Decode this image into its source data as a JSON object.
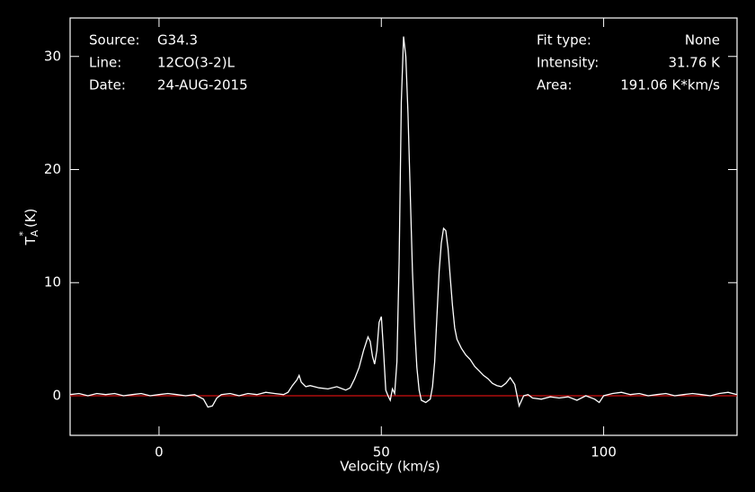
{
  "chart_data": {
    "type": "line",
    "info_left": [
      [
        "Source:",
        "G34.3"
      ],
      [
        "Line:",
        "12CO(3-2)L"
      ],
      [
        "Date:",
        "24-AUG-2015"
      ]
    ],
    "info_right": [
      [
        "Fit type:",
        "None"
      ],
      [
        "Intensity:",
        "31.76 K"
      ],
      [
        "Area:",
        "191.06 K*km/s"
      ]
    ],
    "xlabel": "Velocity (km/s)",
    "ylabel": {
      "main": "T",
      "sub": "A",
      "sup": "*",
      "unit": "(K)"
    },
    "xlim": [
      -20,
      130
    ],
    "ylim": [
      -3.5,
      33.4
    ],
    "xticks": [
      0,
      50,
      100
    ],
    "yticks": [
      0,
      10,
      20,
      30
    ],
    "baseline": {
      "value": 0,
      "color": "#d01010"
    },
    "x": [
      -20,
      -18,
      -16,
      -14,
      -12,
      -10,
      -8,
      -6,
      -4,
      -2,
      0,
      2,
      4,
      6,
      8,
      10,
      11,
      12,
      13,
      14,
      16,
      18,
      20,
      22,
      24,
      26,
      28,
      29,
      30,
      31,
      31.5,
      32,
      33,
      34,
      36,
      38,
      40,
      42,
      43,
      44,
      45,
      46,
      47,
      47.5,
      48,
      48.5,
      49,
      49.5,
      50,
      50.5,
      51,
      51.5,
      52,
      52.5,
      53,
      53.5,
      54,
      54.5,
      55,
      55.5,
      56,
      56.5,
      57,
      57.5,
      58,
      58.5,
      59,
      60,
      61,
      61.5,
      62,
      62.5,
      63,
      63.5,
      64,
      64.5,
      65,
      65.5,
      66,
      66.5,
      67,
      68,
      69,
      70,
      71,
      72,
      73,
      74,
      75,
      76,
      77,
      78,
      79,
      80,
      81,
      82,
      83,
      84,
      86,
      88,
      90,
      92,
      94,
      96,
      98,
      99,
      100,
      102,
      104,
      106,
      108,
      110,
      112,
      114,
      116,
      118,
      120,
      122,
      124,
      126,
      128,
      130
    ],
    "series": [
      {
        "color": "#ffffff",
        "values": [
          0.1,
          0.2,
          0,
          0.2,
          0.1,
          0.2,
          0,
          0.1,
          0.2,
          0,
          0.1,
          0.2,
          0.1,
          0,
          0.1,
          -0.3,
          -1,
          -0.9,
          -0.2,
          0.1,
          0.2,
          0,
          0.2,
          0.1,
          0.3,
          0.2,
          0.1,
          0.3,
          0.9,
          1.4,
          1.8,
          1.2,
          0.8,
          0.9,
          0.7,
          0.6,
          0.8,
          0.5,
          0.7,
          1.5,
          2.5,
          4,
          5.2,
          4.8,
          3.5,
          2.8,
          4,
          6.5,
          7,
          4,
          0.5,
          0,
          -0.4,
          0.6,
          0.2,
          3,
          12,
          26,
          31.76,
          30,
          25,
          18,
          11,
          6,
          2.5,
          0.5,
          -0.4,
          -0.6,
          -0.3,
          0.8,
          3,
          7,
          11,
          13.5,
          14.8,
          14.6,
          13,
          10.5,
          8,
          6,
          5,
          4.2,
          3.6,
          3.2,
          2.6,
          2.2,
          1.8,
          1.5,
          1.1,
          0.9,
          0.8,
          1.1,
          1.6,
          1,
          -0.9,
          0,
          0.1,
          -0.2,
          -0.3,
          -0.1,
          -0.2,
          -0.1,
          -0.4,
          0,
          -0.3,
          -0.6,
          0,
          0.2,
          0.3,
          0.1,
          0.2,
          0,
          0.1,
          0.2,
          0,
          0.1,
          0.2,
          0.1,
          0,
          0.2,
          0.3,
          0.1
        ]
      }
    ]
  }
}
